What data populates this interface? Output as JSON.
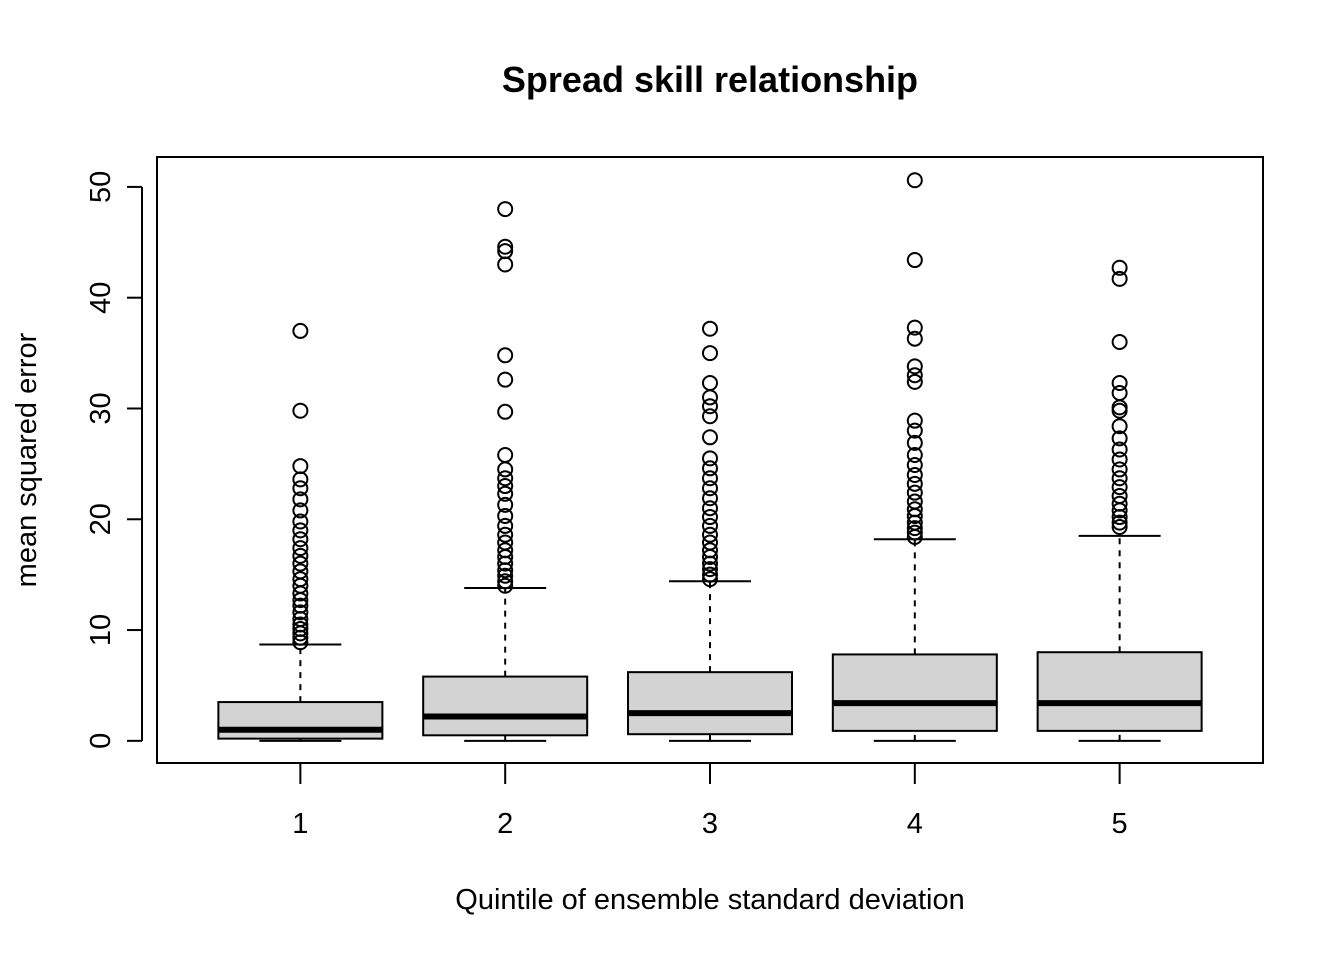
{
  "chart_data": {
    "type": "box",
    "title": "Spread skill relationship",
    "xlabel": "Quintile of ensemble standard deviation",
    "ylabel": "mean squared error",
    "categories": [
      "1",
      "2",
      "3",
      "4",
      "5"
    ],
    "yticks": [
      0,
      10,
      20,
      30,
      40,
      50
    ],
    "ylim": [
      -2,
      52.7
    ],
    "box_fill": "#d3d3d3",
    "boxes": [
      {
        "category": "1",
        "min": 0.0,
        "q1": 0.2,
        "median": 1.0,
        "q3": 3.5,
        "max": 8.7,
        "outliers": [
          8.9,
          9.3,
          9.7,
          10.1,
          10.5,
          11.0,
          11.6,
          12.2,
          12.7,
          13.3,
          14.0,
          14.6,
          15.3,
          16.0,
          16.7,
          17.4,
          18.2,
          19.0,
          19.8,
          20.8,
          21.8,
          22.8,
          23.6,
          24.8,
          29.8,
          37.0
        ]
      },
      {
        "category": "2",
        "min": 0.0,
        "q1": 0.5,
        "median": 2.2,
        "q3": 5.8,
        "max": 13.8,
        "outliers": [
          14.0,
          14.4,
          14.9,
          15.4,
          16.0,
          16.6,
          17.2,
          17.9,
          18.6,
          19.4,
          20.3,
          21.3,
          22.3,
          23.0,
          23.7,
          24.5,
          25.8,
          29.7,
          32.6,
          34.8,
          43.0,
          44.2,
          44.6,
          48.0
        ]
      },
      {
        "category": "3",
        "min": 0.0,
        "q1": 0.6,
        "median": 2.5,
        "q3": 6.2,
        "max": 14.4,
        "outliers": [
          14.6,
          15.0,
          15.5,
          16.0,
          16.6,
          17.2,
          17.9,
          18.6,
          19.4,
          20.2,
          21.0,
          21.9,
          22.8,
          23.7,
          24.6,
          25.5,
          27.4,
          29.3,
          30.2,
          31.0,
          32.3,
          35.0,
          37.2
        ]
      },
      {
        "category": "4",
        "min": 0.0,
        "q1": 0.9,
        "median": 3.4,
        "q3": 7.8,
        "max": 18.2,
        "outliers": [
          18.4,
          18.8,
          19.2,
          19.7,
          20.3,
          20.9,
          21.6,
          22.4,
          23.2,
          24.0,
          24.9,
          25.8,
          26.9,
          28.0,
          28.9,
          32.4,
          33.0,
          33.8,
          36.3,
          37.3,
          43.4,
          50.6
        ]
      },
      {
        "category": "5",
        "min": 0.0,
        "q1": 0.9,
        "median": 3.4,
        "q3": 8.0,
        "max": 18.5,
        "outliers": [
          19.3,
          19.7,
          20.2,
          20.8,
          21.4,
          22.1,
          22.9,
          23.7,
          24.5,
          25.4,
          26.3,
          27.3,
          28.4,
          29.8,
          30.1,
          31.4,
          32.3,
          36.0,
          41.7,
          42.7
        ]
      }
    ]
  }
}
